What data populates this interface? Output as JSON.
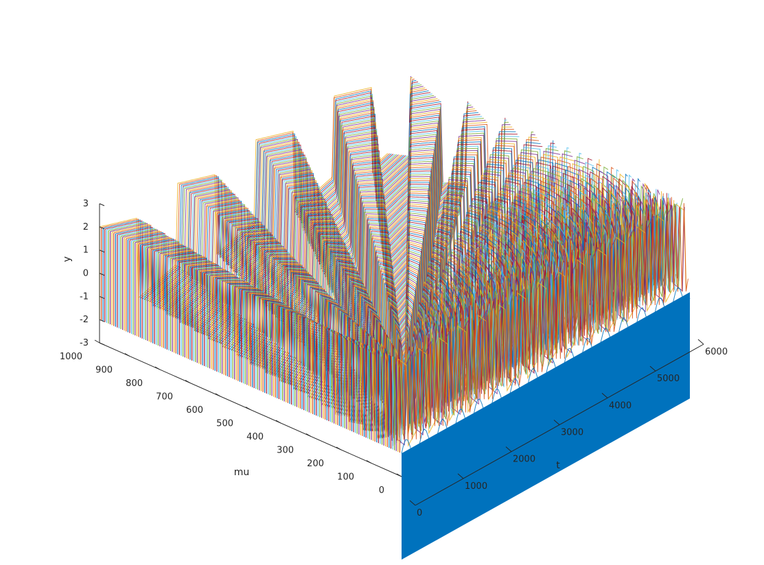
{
  "chart_data": {
    "type": "line",
    "subtype": "3d-waterfall",
    "title": "",
    "xlabel": "t",
    "ylabel": "mu",
    "zlabel": "y",
    "x_ticks": [
      0,
      1000,
      2000,
      3000,
      4000,
      5000,
      6000
    ],
    "y_ticks": [
      0,
      100,
      200,
      300,
      400,
      500,
      600,
      700,
      800,
      900,
      1000
    ],
    "z_ticks": [
      -3,
      -2,
      -1,
      0,
      1,
      2,
      3
    ],
    "xlim": [
      0,
      6000
    ],
    "ylim": [
      0,
      1000
    ],
    "zlim": [
      -3,
      3
    ],
    "grid": false,
    "legend": "none",
    "surface_color": "#0072bd",
    "series_colors": [
      "#0072bd",
      "#d95319",
      "#edb120",
      "#7e2f8e",
      "#77ac30",
      "#4dbeee",
      "#a2142f"
    ],
    "waveform": "square-like oscillation of period roughly 2*mu, amplitude about 2; front edge y = -2 at mu = 0 for all t",
    "ridges": [
      {
        "mu": 1000,
        "y_max": 1.0
      },
      {
        "mu": 1000,
        "t": 1000,
        "y_max": 2.0
      },
      {
        "mu": 1000,
        "t": 2000,
        "y_max": 2.0
      },
      {
        "mu": 1000,
        "t": 3000,
        "y_max": 2.0
      },
      {
        "mu": 1000,
        "t": 4000,
        "y_max": 2.0
      }
    ]
  }
}
